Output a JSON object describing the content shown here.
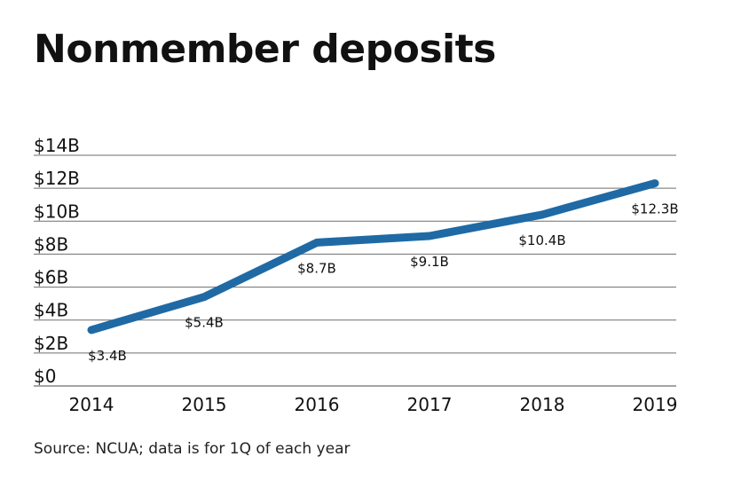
{
  "title": "Nonmember deposits",
  "source": "Source: NCUA; data is for 1Q of each year",
  "colors": {
    "line": "#1f6aa5",
    "grid": "#6e6e6e",
    "text": "#111111"
  },
  "chart_data": {
    "type": "line",
    "title": "Nonmember deposits",
    "categories": [
      "2014",
      "2015",
      "2016",
      "2017",
      "2018",
      "2019"
    ],
    "series": [
      {
        "values": [
          3.4,
          5.4,
          8.7,
          9.1,
          10.4,
          12.3
        ]
      }
    ],
    "data_labels": [
      "$3.4B",
      "$5.4B",
      "$8.7B",
      "$9.1B",
      "$10.4B",
      "$12.3B"
    ],
    "yticks": [
      {
        "value": 0,
        "label": "$0"
      },
      {
        "value": 2,
        "label": "$2B"
      },
      {
        "value": 4,
        "label": "$4B"
      },
      {
        "value": 6,
        "label": "$6B"
      },
      {
        "value": 8,
        "label": "$8B"
      },
      {
        "value": 10,
        "label": "$10B"
      },
      {
        "value": 12,
        "label": "$12B"
      },
      {
        "value": 14,
        "label": "$14B"
      }
    ],
    "ylim": [
      0,
      14
    ],
    "grid": true,
    "legend": "none",
    "xlabel": "",
    "ylabel": ""
  }
}
